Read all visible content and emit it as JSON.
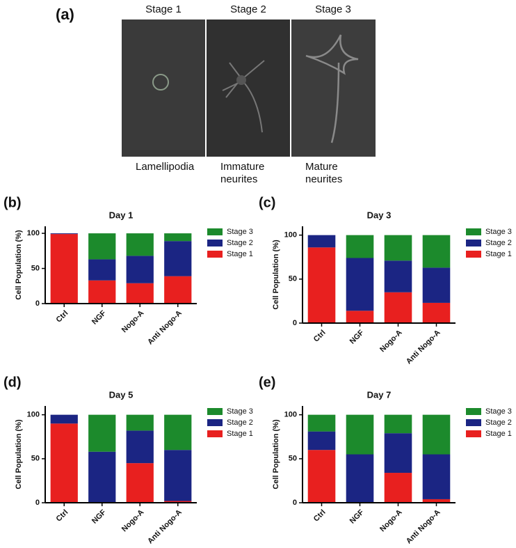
{
  "figure_a": {
    "panel_label": "(a)",
    "stages": [
      "Stage 1",
      "Stage 2",
      "Stage 3"
    ],
    "captions": [
      [
        "Lamellipodia"
      ],
      [
        "Immature",
        "neurites"
      ],
      [
        "Mature",
        "neurites"
      ]
    ]
  },
  "chart_data": [
    {
      "type": "stacked_bar",
      "panel_label": "(b)",
      "title": "Day 1",
      "y_label": "Cell Population (%)",
      "categories": [
        "Ctrl",
        "NGF",
        "Nogo-A",
        "Anti Nogo-A"
      ],
      "series": [
        {
          "name": "Stage 1",
          "color": "#e8201f",
          "values": [
            99,
            33,
            29,
            39
          ]
        },
        {
          "name": "Stage 2",
          "color": "#1b2583",
          "values": [
            1,
            30,
            39,
            50
          ]
        },
        {
          "name": "Stage 3",
          "color": "#1c8a2c",
          "values": [
            0,
            37,
            32,
            11
          ]
        }
      ],
      "ylim": [
        0,
        110
      ],
      "yticks": [
        0,
        50,
        100
      ],
      "legend": "outside right"
    },
    {
      "type": "stacked_bar",
      "panel_label": "(c)",
      "title": "Day 3",
      "y_label": "Cell Population (%)",
      "categories": [
        "Ctrl",
        "NGF",
        "Nogo-A",
        "Anti Nogo-A"
      ],
      "series": [
        {
          "name": "Stage 1",
          "color": "#e8201f",
          "values": [
            86,
            14,
            35,
            23
          ]
        },
        {
          "name": "Stage 2",
          "color": "#1b2583",
          "values": [
            14,
            60,
            36,
            40
          ]
        },
        {
          "name": "Stage 3",
          "color": "#1c8a2c",
          "values": [
            0,
            26,
            29,
            37
          ]
        }
      ],
      "ylim": [
        0,
        110
      ],
      "yticks": [
        0,
        50,
        100
      ],
      "legend": "outside right"
    },
    {
      "type": "stacked_bar",
      "panel_label": "(d)",
      "title": "Day 5",
      "y_label": "Cell Population (%)",
      "categories": [
        "Ctrl",
        "NGF",
        "Nogo-A",
        "Anti Nogo-A"
      ],
      "series": [
        {
          "name": "Stage 1",
          "color": "#e8201f",
          "values": [
            90,
            0,
            45,
            2
          ]
        },
        {
          "name": "Stage 2",
          "color": "#1b2583",
          "values": [
            10,
            58,
            37,
            58
          ]
        },
        {
          "name": "Stage 3",
          "color": "#1c8a2c",
          "values": [
            0,
            42,
            18,
            40
          ]
        }
      ],
      "ylim": [
        0,
        110
      ],
      "yticks": [
        0,
        50,
        100
      ],
      "legend": "outside right"
    },
    {
      "type": "stacked_bar",
      "panel_label": "(e)",
      "title": "Day 7",
      "y_label": "Cell Population (%)",
      "categories": [
        "Ctrl",
        "NGF",
        "Nogo-A",
        "Anti Nogo-A"
      ],
      "series": [
        {
          "name": "Stage 1",
          "color": "#e8201f",
          "values": [
            60,
            0,
            34,
            4
          ]
        },
        {
          "name": "Stage 2",
          "color": "#1b2583",
          "values": [
            21,
            55,
            45,
            51
          ]
        },
        {
          "name": "Stage 3",
          "color": "#1c8a2c",
          "values": [
            19,
            45,
            21,
            45
          ]
        }
      ],
      "ylim": [
        0,
        110
      ],
      "yticks": [
        0,
        50,
        100
      ],
      "legend": "outside right"
    }
  ]
}
